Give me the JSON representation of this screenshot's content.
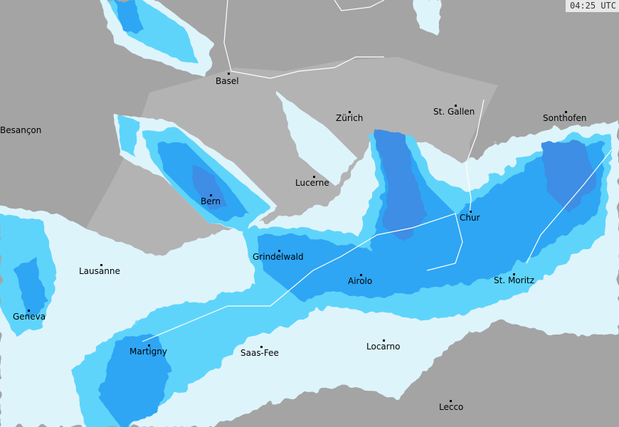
{
  "timestamp": "04:25 UTC",
  "colors": {
    "outside": "#a4a4a4",
    "switzerland": "#b3b3b3",
    "precip_light": "#def4fb",
    "precip_cyan": "#5fd4fa",
    "precip_blue": "#2ea6f4",
    "precip_dark": "#3d8ee4",
    "border": "#ffffff"
  },
  "cities": [
    {
      "name": "Basel"
    },
    {
      "name": "Besançon"
    },
    {
      "name": "Zürich"
    },
    {
      "name": "St. Gallen"
    },
    {
      "name": "Sonthofen"
    },
    {
      "name": "Lucerne"
    },
    {
      "name": "Bern"
    },
    {
      "name": "Chur"
    },
    {
      "name": "Grindelwald"
    },
    {
      "name": "Lausanne"
    },
    {
      "name": "Airolo"
    },
    {
      "name": "St. Moritz"
    },
    {
      "name": "Geneva"
    },
    {
      "name": "Martigny"
    },
    {
      "name": "Saas-Fee"
    },
    {
      "name": "Locarno"
    },
    {
      "name": "Lecco"
    }
  ]
}
